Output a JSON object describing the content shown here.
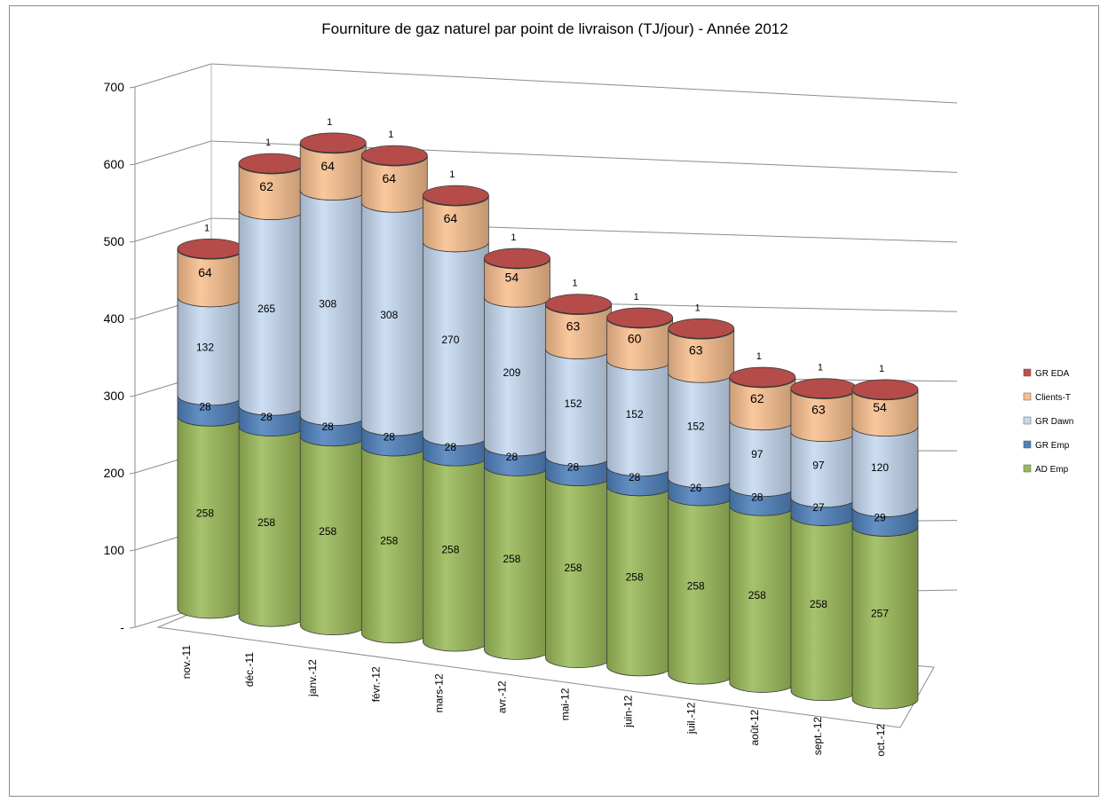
{
  "chart_data": {
    "type": "bar",
    "stacked": true,
    "style": "3d-cylinder",
    "title": "Fourniture de gaz naturel par point de livraison (TJ/jour) - Année 2012",
    "xlabel": "",
    "ylabel": "",
    "ylim": [
      0,
      700
    ],
    "yticks": [
      "-",
      "100",
      "200",
      "300",
      "400",
      "500",
      "600",
      "700"
    ],
    "grid": true,
    "legend_position": "right",
    "categories": [
      "nov.-11",
      "déc.-11",
      "janv.-12",
      "févr.-12",
      "mars-12",
      "avr.-12",
      "mai-12",
      "juin-12",
      "juil.-12",
      "août-12",
      "sept.-12",
      "oct.-12"
    ],
    "series": [
      {
        "name": "AD Emp",
        "color": "#9bbb59",
        "values": [
          258,
          258,
          258,
          258,
          258,
          258,
          258,
          258,
          258,
          258,
          258,
          257
        ]
      },
      {
        "name": "GR Emp",
        "color": "#4f81bd",
        "values": [
          28,
          28,
          28,
          28,
          28,
          28,
          28,
          28,
          26,
          28,
          27,
          29
        ]
      },
      {
        "name": "GR Dawn",
        "color": "#c6d9f1",
        "values": [
          132,
          265,
          308,
          308,
          270,
          209,
          152,
          152,
          152,
          97,
          97,
          120
        ]
      },
      {
        "name": "Clients-T",
        "color": "#fac090",
        "values": [
          64,
          62,
          64,
          64,
          64,
          54,
          63,
          60,
          63,
          62,
          63,
          54
        ]
      },
      {
        "name": "GR EDA",
        "color": "#c0504d",
        "values": [
          1,
          1,
          1,
          1,
          1,
          1,
          1,
          1,
          1,
          1,
          1,
          1
        ]
      }
    ],
    "legend_order": [
      "GR EDA",
      "Clients-T",
      "GR Dawn",
      "GR Emp",
      "AD Emp"
    ]
  }
}
